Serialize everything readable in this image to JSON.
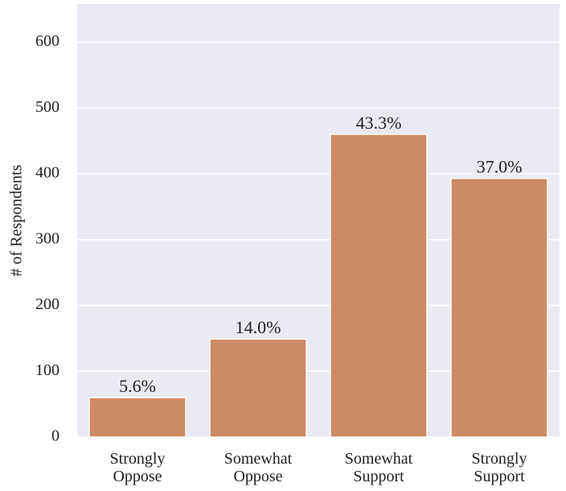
{
  "chart_data": {
    "type": "bar",
    "ylabel": "# of Respondents",
    "categories": [
      "Strongly Oppose",
      "Somewhat Oppose",
      "Somewhat Support",
      "Strongly Support"
    ],
    "values": [
      60,
      149,
      460,
      393
    ],
    "value_labels": [
      "5.6%",
      "14.0%",
      "43.3%",
      "37.0%"
    ],
    "color": "#cd8a64",
    "ylim": [
      0,
      658
    ],
    "yticks": [
      0,
      100,
      200,
      300,
      400,
      500,
      600
    ],
    "grid": true
  }
}
